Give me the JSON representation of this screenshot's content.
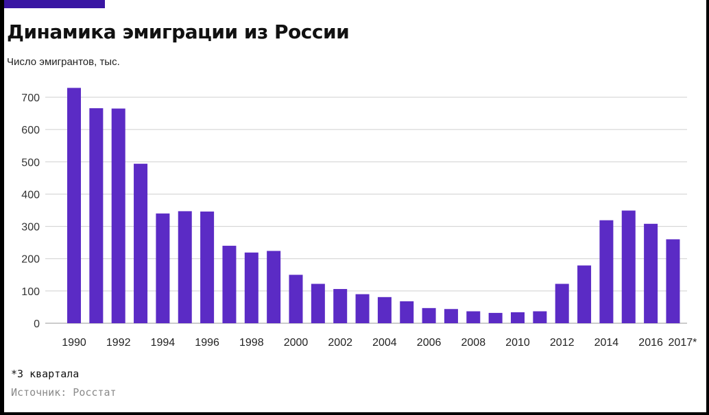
{
  "colors": {
    "bar": "#5b2bc5",
    "accent": "#3a16a3",
    "grid": "#cfcfcf"
  },
  "chart_data": {
    "type": "bar",
    "title": "Динамика эмиграции из России",
    "subtitle": "Число эмигрантов, тыс.",
    "xlabel": "",
    "ylabel": "Число эмигрантов, тыс.",
    "ylim": [
      0,
      700
    ],
    "yticks": [
      0,
      100,
      200,
      300,
      400,
      500,
      600,
      700
    ],
    "grid": true,
    "categories": [
      "1990",
      "1991",
      "1992",
      "1993",
      "1994",
      "1995",
      "1996",
      "1997",
      "1998",
      "1999",
      "2000",
      "2001",
      "2002",
      "2003",
      "2004",
      "2005",
      "2006",
      "2007",
      "2008",
      "2009",
      "2010",
      "2011",
      "2012",
      "2013",
      "2014",
      "2015",
      "2016",
      "2017*"
    ],
    "x_tick_labels": [
      "1990",
      "",
      "1992",
      "",
      "1994",
      "",
      "1996",
      "",
      "1998",
      "",
      "2000",
      "",
      "2002",
      "",
      "2004",
      "",
      "2006",
      "",
      "2008",
      "",
      "2010",
      "",
      "2012",
      "",
      "2014",
      "",
      "2016",
      "2017*"
    ],
    "values": [
      729,
      666,
      665,
      494,
      340,
      347,
      346,
      240,
      219,
      224,
      150,
      122,
      106,
      90,
      81,
      68,
      47,
      44,
      37,
      32,
      34,
      37,
      122,
      179,
      319,
      349,
      308,
      260
    ]
  },
  "footnote": "*3 квартала",
  "source": "Источник: Росстат"
}
